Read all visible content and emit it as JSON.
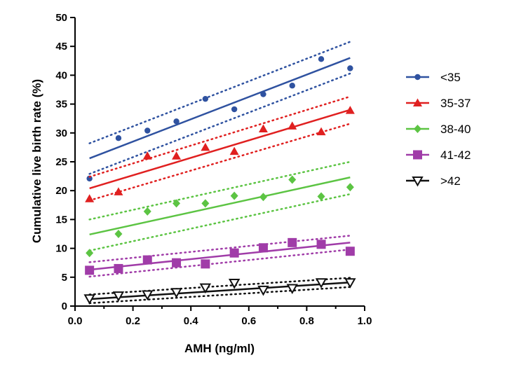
{
  "chart_data": {
    "type": "scatter",
    "title": "",
    "xlabel": "AMH (ng/ml)",
    "ylabel": "Cumulative live birth rate (%)",
    "xlim": [
      0,
      1.0
    ],
    "ylim": [
      0,
      50
    ],
    "xticks": [
      "0.0",
      "0.2",
      "0.4",
      "0.6",
      "0.8",
      "1.0"
    ],
    "yticks": [
      "0",
      "5",
      "10",
      "15",
      "20",
      "25",
      "30",
      "35",
      "40",
      "45",
      "50"
    ],
    "x": [
      0.05,
      0.15,
      0.25,
      0.35,
      0.45,
      0.55,
      0.65,
      0.75,
      0.85,
      0.95
    ],
    "grid": false,
    "legend_position": "right",
    "series": [
      {
        "name": "<35",
        "color": "#2f52a0",
        "marker": "circle",
        "values": [
          22.1,
          29.1,
          30.4,
          32.0,
          35.9,
          34.1,
          36.7,
          38.2,
          42.8,
          41.2
        ],
        "fit": [
          25.6,
          43.0
        ],
        "ci_upper": [
          28.2,
          45.8
        ],
        "ci_lower": [
          22.9,
          40.3
        ]
      },
      {
        "name": "35-37",
        "color": "#e02020",
        "marker": "triangle",
        "values": [
          18.6,
          19.8,
          26.0,
          26.0,
          27.5,
          26.8,
          30.7,
          31.2,
          30.2,
          33.9
        ],
        "fit": [
          20.4,
          34.0
        ],
        "ci_upper": [
          22.4,
          36.3
        ],
        "ci_lower": [
          18.3,
          31.6
        ]
      },
      {
        "name": "38-40",
        "color": "#5cc443",
        "marker": "diamond",
        "values": [
          9.2,
          12.5,
          16.4,
          17.8,
          17.8,
          19.1,
          18.9,
          21.9,
          19.0,
          20.6
        ],
        "fit": [
          12.4,
          22.3
        ],
        "ci_upper": [
          15.0,
          25.0
        ],
        "ci_lower": [
          9.6,
          19.4
        ]
      },
      {
        "name": "41-42",
        "color": "#a03ca8",
        "marker": "square",
        "values": [
          6.2,
          6.5,
          8.0,
          7.5,
          7.3,
          9.2,
          10.1,
          11.0,
          10.7,
          9.5
        ],
        "fit": [
          6.3,
          11.0
        ],
        "ci_upper": [
          7.6,
          12.2
        ],
        "ci_lower": [
          5.1,
          9.8
        ]
      },
      {
        "name": ">42",
        "color": "#111111",
        "marker": "triangle-down-open",
        "values": [
          1.3,
          1.8,
          2.0,
          2.4,
          3.2,
          4.0,
          2.8,
          3.1,
          4.1,
          4.1
        ],
        "fit": [
          1.2,
          4.1
        ],
        "ci_upper": [
          2.0,
          4.9
        ],
        "ci_lower": [
          0.5,
          3.3
        ]
      }
    ]
  }
}
